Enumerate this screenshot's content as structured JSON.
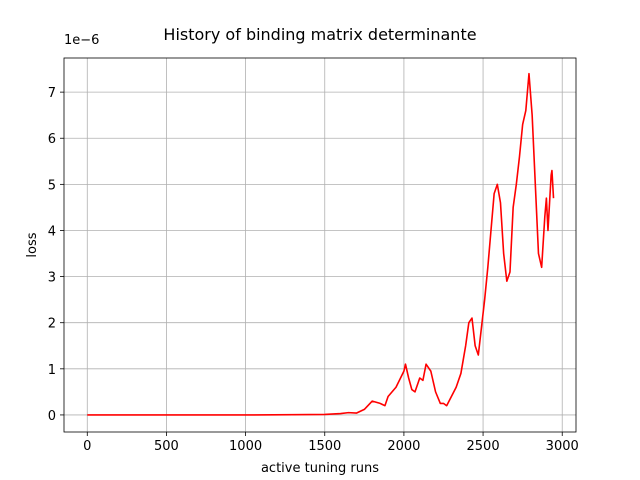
{
  "chart_data": {
    "type": "line",
    "title": "History of binding matrix determinante",
    "x_label": "active tuning runs",
    "y_label": "loss",
    "y_offset_label": "1e−6",
    "x": [
      0,
      500,
      1000,
      1300,
      1500,
      1600,
      1650,
      1700,
      1750,
      1800,
      1850,
      1880,
      1900,
      1950,
      2000,
      2010,
      2030,
      2050,
      2070,
      2100,
      2120,
      2140,
      2170,
      2200,
      2230,
      2250,
      2270,
      2300,
      2330,
      2360,
      2390,
      2410,
      2430,
      2450,
      2470,
      2490,
      2510,
      2530,
      2550,
      2570,
      2590,
      2610,
      2630,
      2650,
      2670,
      2690,
      2710,
      2730,
      2750,
      2770,
      2790,
      2810,
      2830,
      2850,
      2870,
      2890,
      2900,
      2910,
      2920,
      2930,
      2935,
      2945
    ],
    "series": [
      {
        "name": "loss",
        "color": "#ff0000",
        "values": [
          0,
          0,
          0,
          0.005,
          0.01,
          0.03,
          0.05,
          0.04,
          0.12,
          0.3,
          0.25,
          0.2,
          0.4,
          0.6,
          0.95,
          1.1,
          0.8,
          0.55,
          0.5,
          0.8,
          0.75,
          1.1,
          0.95,
          0.5,
          0.25,
          0.25,
          0.2,
          0.4,
          0.6,
          0.9,
          1.5,
          2.0,
          2.1,
          1.5,
          1.3,
          1.9,
          2.5,
          3.2,
          4.0,
          4.8,
          5.0,
          4.6,
          3.5,
          2.9,
          3.1,
          4.5,
          5.0,
          5.6,
          6.3,
          6.6,
          7.4,
          6.5,
          5.0,
          3.5,
          3.2,
          4.3,
          4.7,
          4.0,
          4.6,
          5.2,
          5.3,
          4.7
        ]
      }
    ],
    "xlim": [
      -147,
      3087
    ],
    "ylim": [
      -0.37,
      7.74
    ],
    "xticks": [
      0,
      500,
      1000,
      1500,
      2000,
      2500,
      3000
    ],
    "yticks": [
      0,
      1,
      2,
      3,
      4,
      5,
      6,
      7
    ],
    "grid": true
  }
}
